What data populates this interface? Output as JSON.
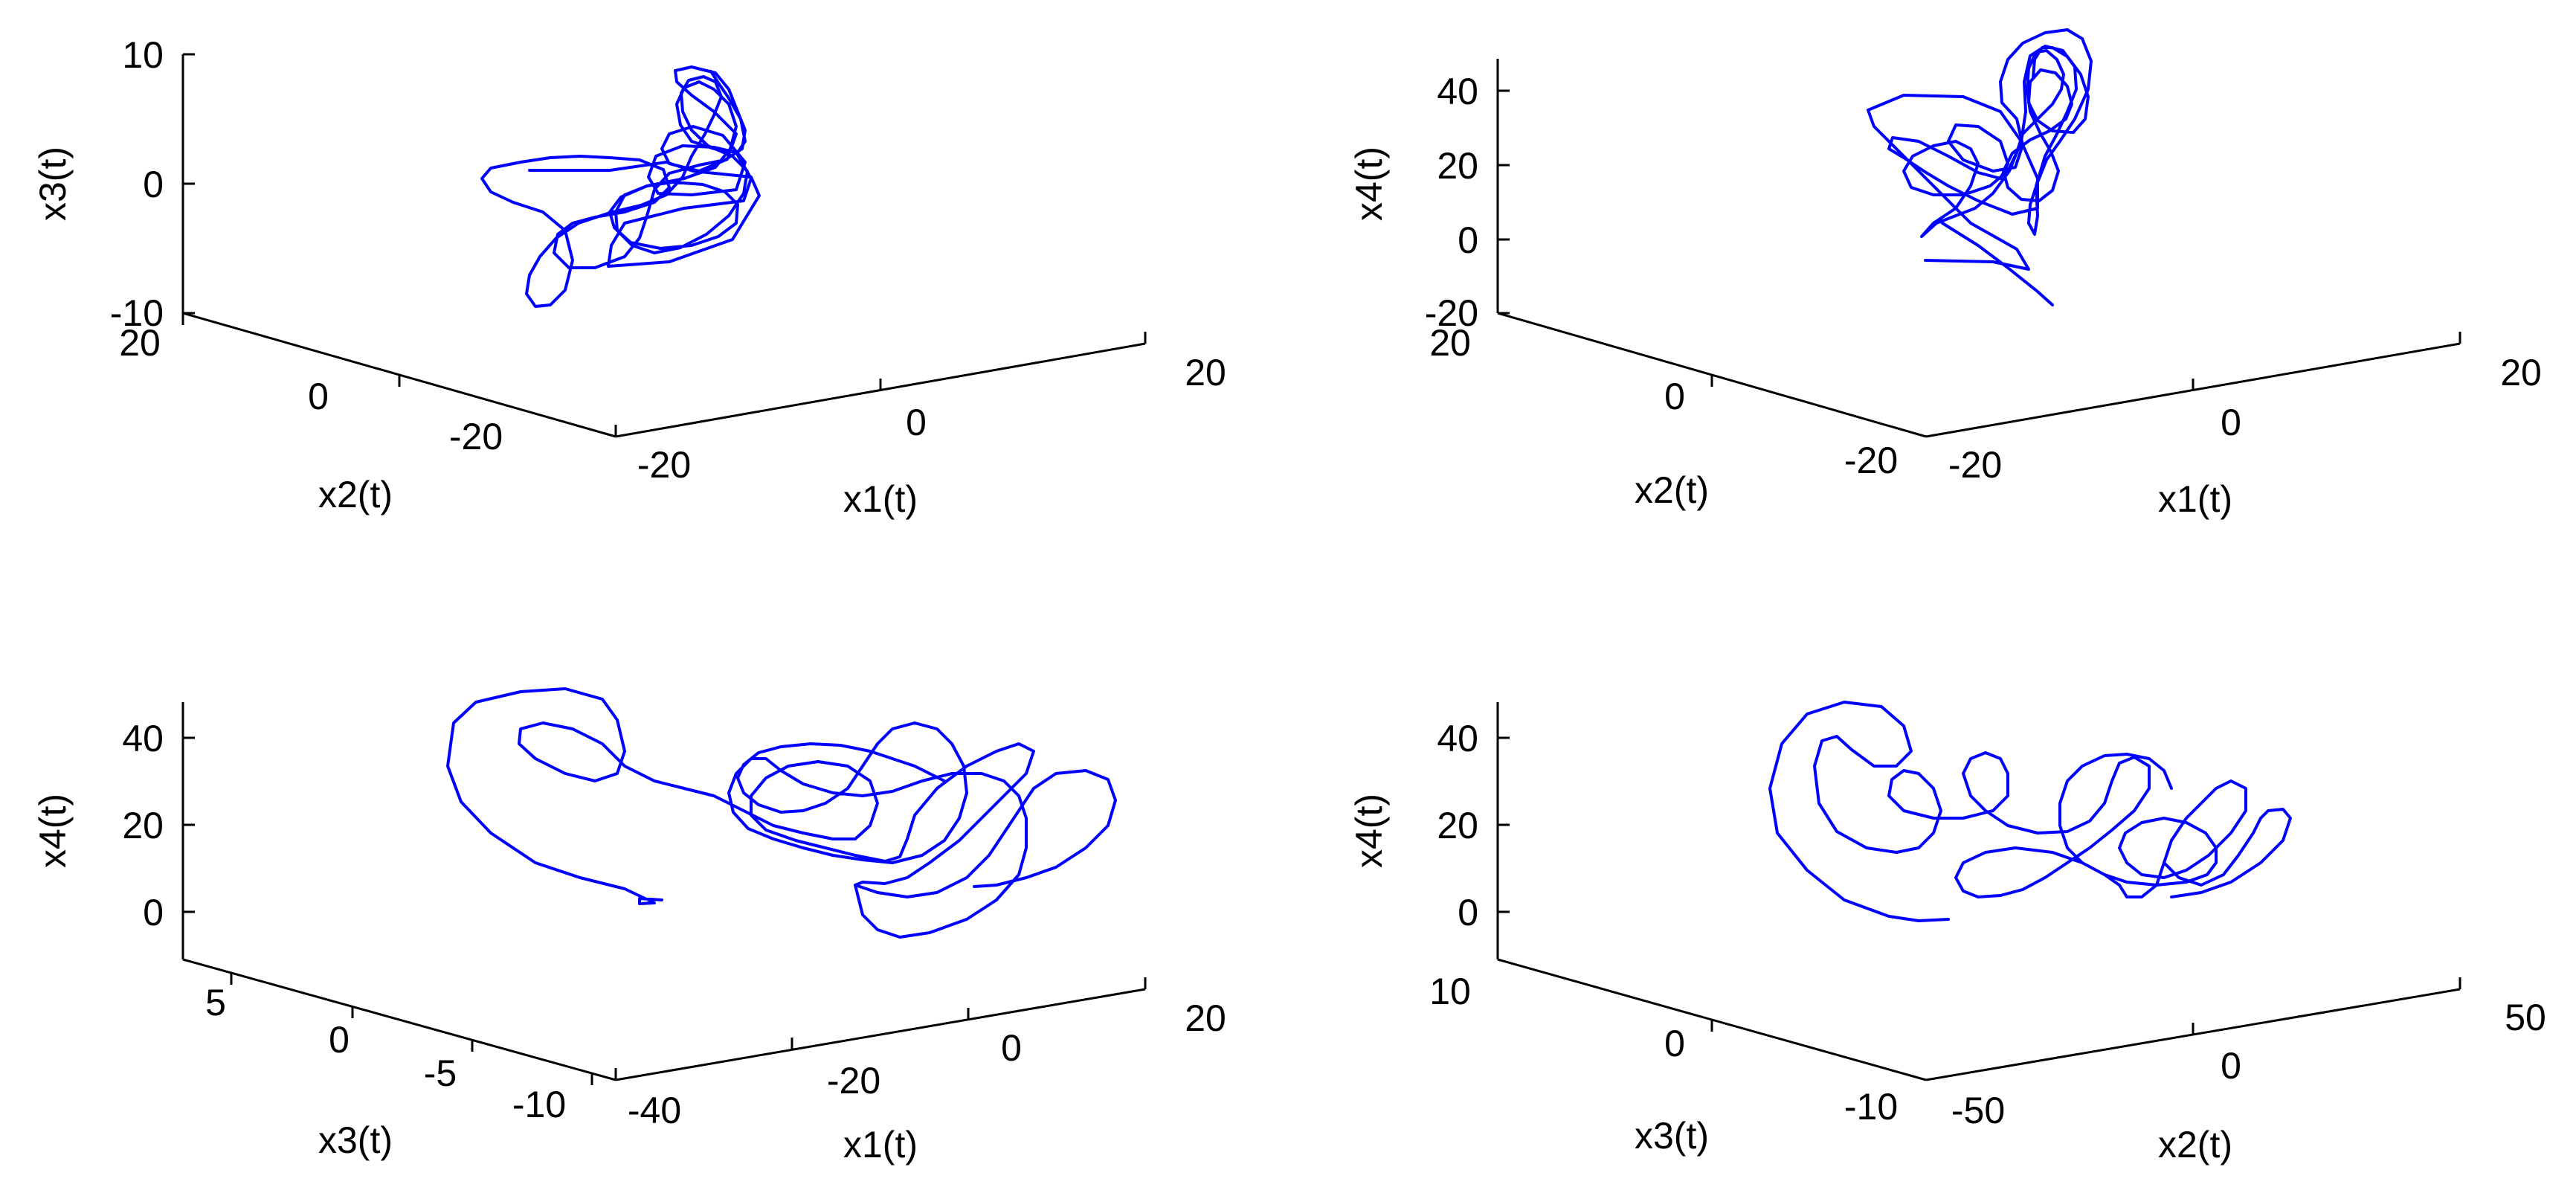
{
  "chart_data": [
    {
      "type": "line3d",
      "xlabel": "x1(t)",
      "ylabel": "x2(t)",
      "zlabel": "x3(t)",
      "xlim": [
        -20,
        20
      ],
      "ylim": [
        -20,
        20
      ],
      "zlim": [
        -10,
        10
      ],
      "xticks": [
        -20,
        0,
        20
      ],
      "yticks": [
        -20,
        0,
        20
      ],
      "zticks": [
        -10,
        0,
        10
      ],
      "xtick_labels": [
        "-20",
        "0",
        "20"
      ],
      "ytick_labels": [
        "-20",
        "0",
        "20"
      ],
      "ztick_labels": [
        "-10",
        "0",
        "10"
      ],
      "series": [
        {
          "color": "#0000ff",
          "attractor": {
            "cx": 0.5,
            "cy": 0.5,
            "cz": 0.2,
            "rx": 7,
            "ry": 7,
            "rz": 5
          }
        }
      ]
    },
    {
      "type": "line3d",
      "xlabel": "x1(t)",
      "ylabel": "x2(t)",
      "zlabel": "x4(t)",
      "xlim": [
        -20,
        20
      ],
      "ylim": [
        -20,
        20
      ],
      "zlim": [
        -20,
        40
      ],
      "xticks": [
        -20,
        0,
        20
      ],
      "yticks": [
        -20,
        0,
        20
      ],
      "zticks": [
        -20,
        0,
        20,
        40
      ],
      "xtick_labels": [
        "-20",
        "0",
        "20"
      ],
      "ytick_labels": [
        "-20",
        "0",
        "20"
      ],
      "ztick_labels": [
        "-20",
        "0",
        "20",
        "40"
      ],
      "series": [
        {
          "color": "#0000ff",
          "attractor": {
            "cx": 0.5,
            "cy": 0.5,
            "cz": 22,
            "rx": 7,
            "ry": 7,
            "rz": 14
          }
        }
      ]
    },
    {
      "type": "line3d",
      "xlabel": "x1(t)",
      "ylabel": "x3(t)",
      "zlabel": "x4(t)",
      "xlim": [
        -40,
        20
      ],
      "ylim": [
        -10,
        8
      ],
      "zlim": [
        -10,
        48
      ],
      "xticks": [
        -40,
        -20,
        0,
        20
      ],
      "yticks": [
        -10,
        -5,
        0,
        5
      ],
      "zticks": [
        0,
        20,
        40
      ],
      "xtick_labels": [
        "-40",
        "-20",
        "0",
        "20"
      ],
      "ytick_labels": [
        "-10",
        "-5",
        "0",
        "5"
      ],
      "ztick_labels": [
        "0",
        "20",
        "40"
      ],
      "series": [
        {
          "color": "#0000ff",
          "attractor": {
            "cx": -5,
            "cy": 0,
            "cz": 25,
            "rx": 14,
            "ry": 3,
            "rz": 10
          }
        }
      ]
    },
    {
      "type": "line3d",
      "xlabel": "x2(t)",
      "ylabel": "x3(t)",
      "zlabel": "x4(t)",
      "xlim": [
        -50,
        50
      ],
      "ylim": [
        -10,
        10
      ],
      "zlim": [
        -10,
        48
      ],
      "xticks": [
        -50,
        0,
        50
      ],
      "yticks": [
        -10,
        0,
        10
      ],
      "zticks": [
        0,
        20,
        40
      ],
      "xtick_labels": [
        "-50",
        "0",
        "50"
      ],
      "ytick_labels": [
        "-10",
        "0",
        "10"
      ],
      "ztick_labels": [
        "0",
        "20",
        "40"
      ],
      "series": [
        {
          "color": "#0000ff",
          "attractor": {
            "cx": 0,
            "cy": 0,
            "cz": 25,
            "rx": 18,
            "ry": 4,
            "rz": 10
          }
        }
      ]
    }
  ]
}
